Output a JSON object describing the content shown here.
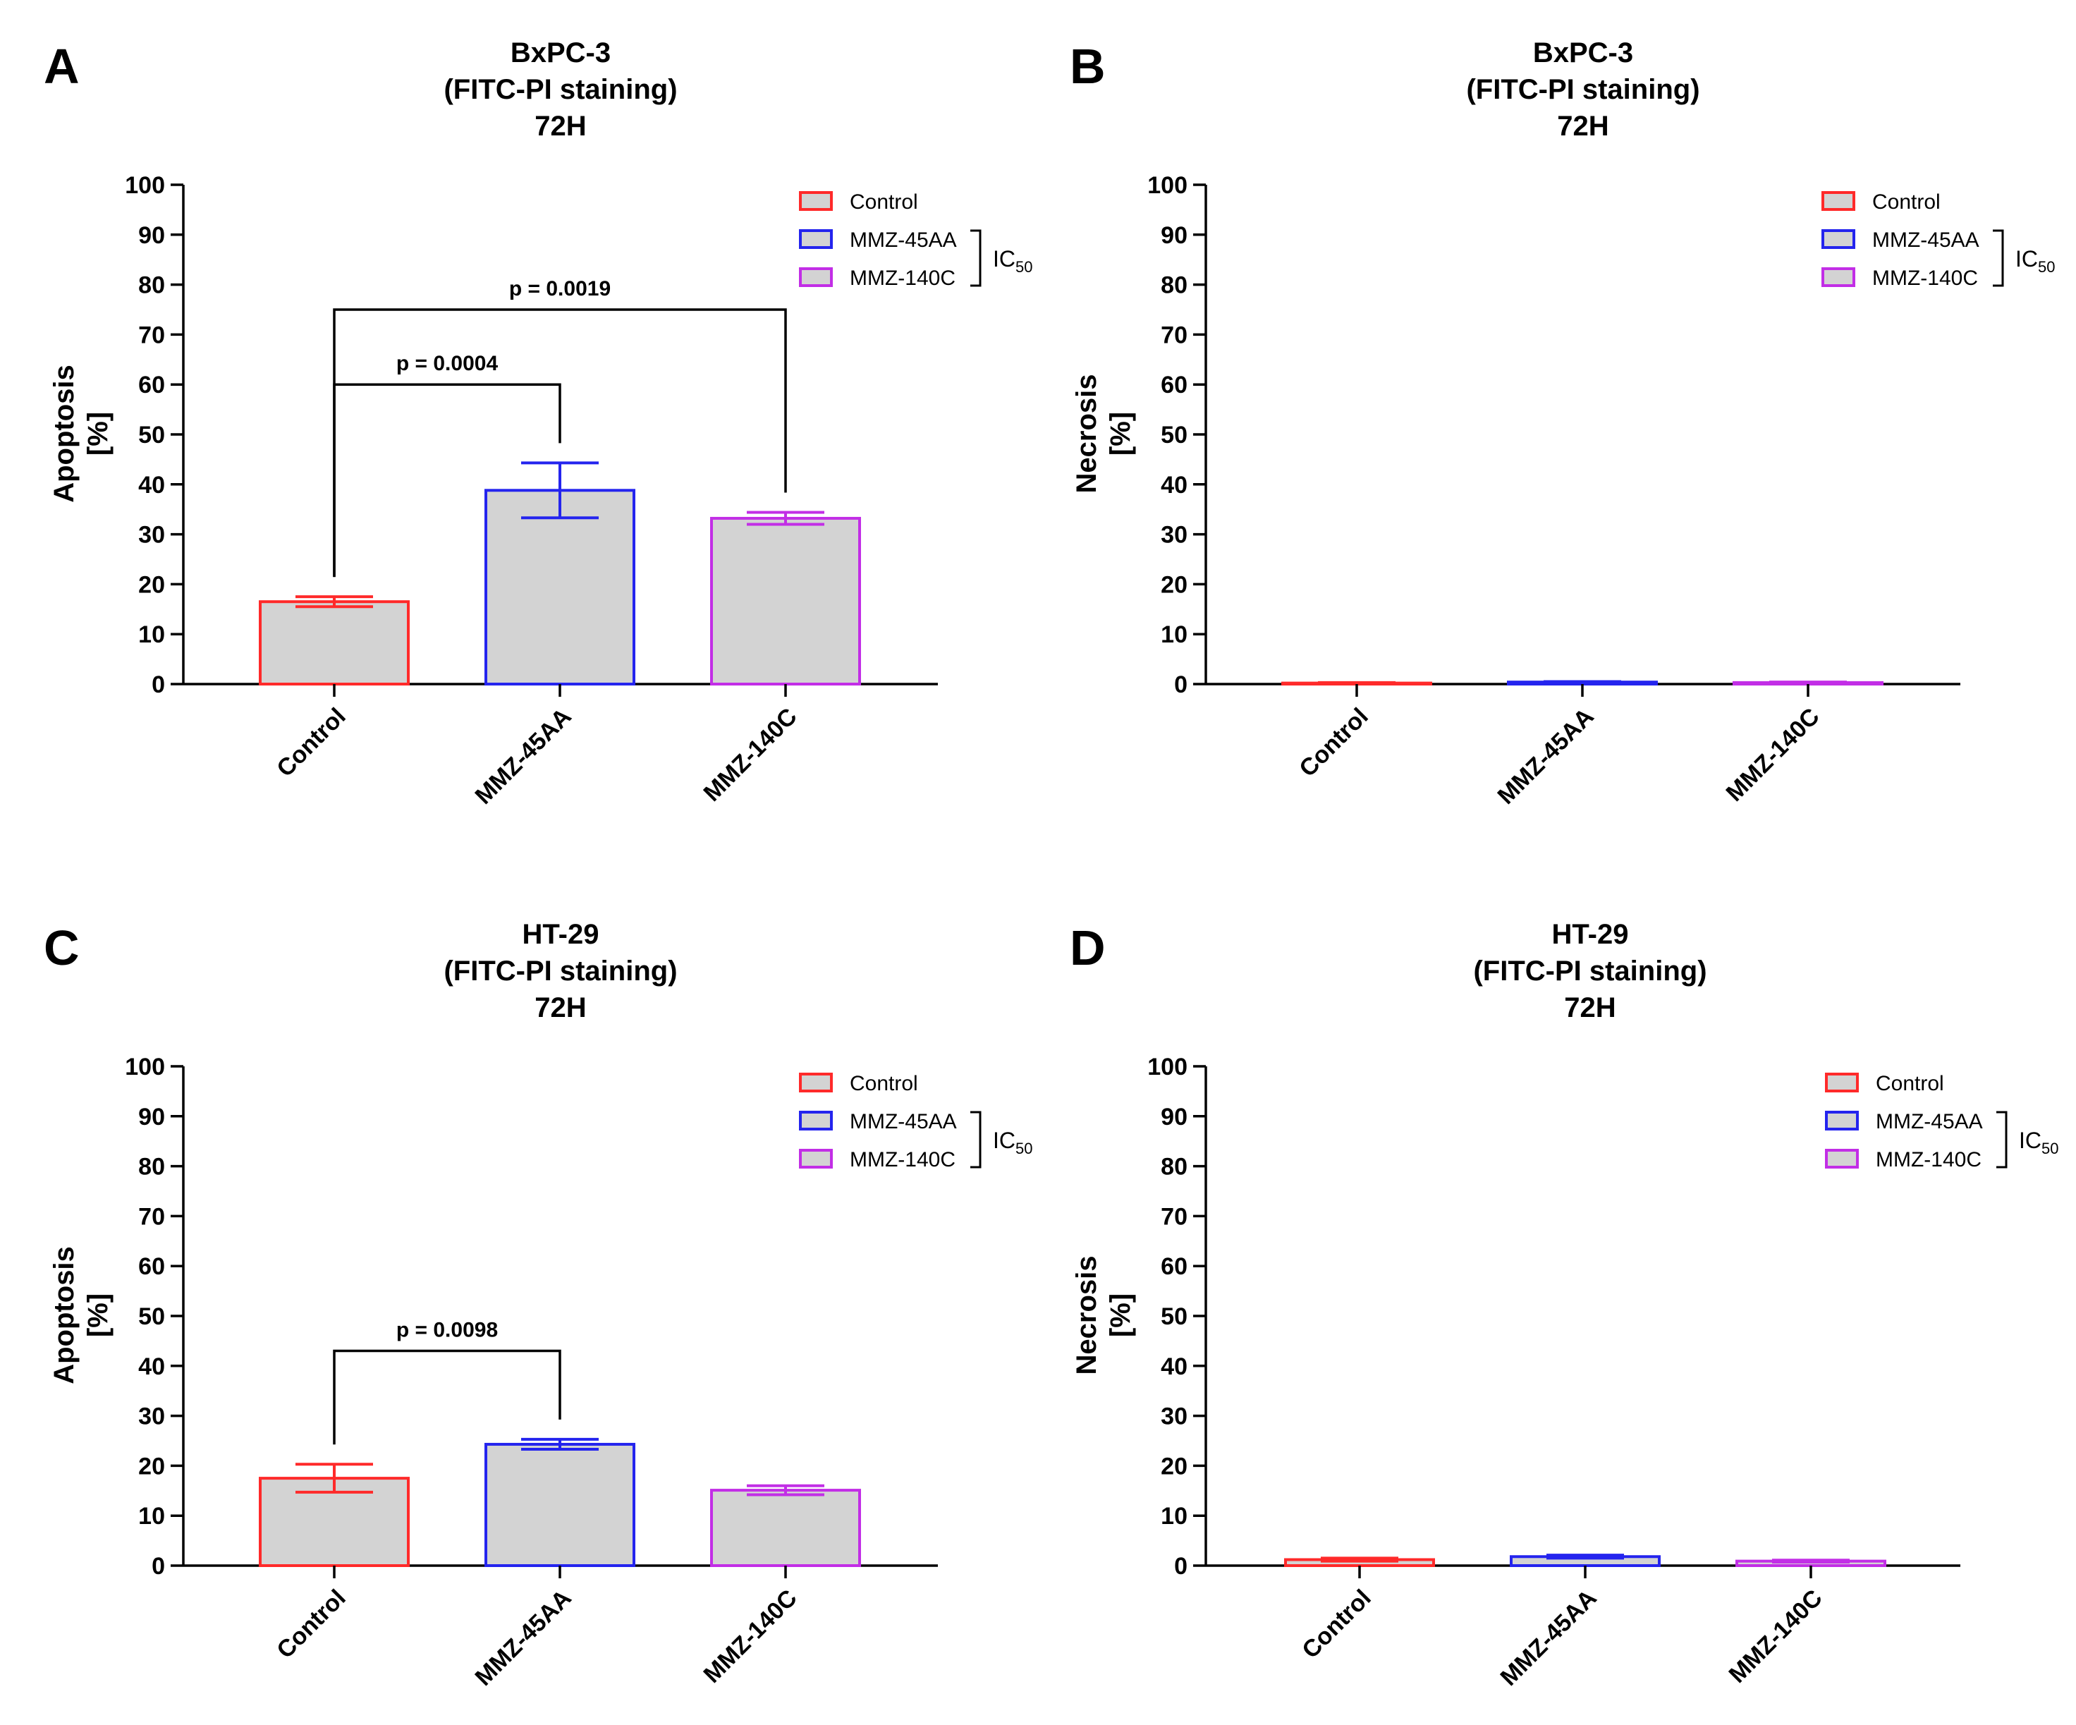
{
  "figure": {
    "bar_fill": "#d3d3d3",
    "series_colors": {
      "Control": "#ff2a2a",
      "MMZ-45AA": "#2424ee",
      "MMZ-140C": "#c22ee6"
    },
    "ic_label": "IC",
    "ic_subscript": "50"
  },
  "chart_data": [
    {
      "panel": "A",
      "type": "bar",
      "title_lines": [
        "BxPC-3",
        "(FITC-PI staining)",
        "72H"
      ],
      "ylabel_lines": [
        "Apoptosis",
        "[%]"
      ],
      "ylim": [
        0,
        100
      ],
      "yticks": [
        0,
        10,
        20,
        30,
        40,
        50,
        60,
        70,
        80,
        90,
        100
      ],
      "categories": [
        "Control",
        "MMZ-45AA",
        "MMZ-140C"
      ],
      "values": [
        16.5,
        38.8,
        33.2
      ],
      "errors": [
        1.0,
        5.5,
        1.2
      ],
      "legend": [
        "Control",
        "MMZ-45AA",
        "MMZ-140C"
      ],
      "significance": [
        {
          "from": 0,
          "to": 1,
          "label": "p = 0.0004",
          "y": 60
        },
        {
          "from": 0,
          "to": 2,
          "label": "p = 0.0019",
          "y": 75
        }
      ]
    },
    {
      "panel": "B",
      "type": "bar",
      "title_lines": [
        "BxPC-3",
        "(FITC-PI staining)",
        "72H"
      ],
      "ylabel_lines": [
        "Necrosis",
        "[%]"
      ],
      "ylim": [
        0,
        100
      ],
      "yticks": [
        0,
        10,
        20,
        30,
        40,
        50,
        60,
        70,
        80,
        90,
        100
      ],
      "categories": [
        "Control",
        "MMZ-45AA",
        "MMZ-140C"
      ],
      "values": [
        0.2,
        0.4,
        0.3
      ],
      "errors": [
        0.1,
        0.1,
        0.1
      ],
      "legend": [
        "Control",
        "MMZ-45AA",
        "MMZ-140C"
      ],
      "significance": []
    },
    {
      "panel": "C",
      "type": "bar",
      "title_lines": [
        "HT-29",
        "(FITC-PI staining)",
        "72H"
      ],
      "ylabel_lines": [
        "Apoptosis",
        "[%]"
      ],
      "ylim": [
        0,
        100
      ],
      "yticks": [
        0,
        10,
        20,
        30,
        40,
        50,
        60,
        70,
        80,
        90,
        100
      ],
      "categories": [
        "Control",
        "MMZ-45AA",
        "MMZ-140C"
      ],
      "values": [
        17.5,
        24.3,
        15.1
      ],
      "errors": [
        2.8,
        1.0,
        0.9
      ],
      "legend": [
        "Control",
        "MMZ-45AA",
        "MMZ-140C"
      ],
      "significance": [
        {
          "from": 0,
          "to": 1,
          "label": "p = 0.0098",
          "y": 43
        }
      ]
    },
    {
      "panel": "D",
      "type": "bar",
      "title_lines": [
        "HT-29",
        "(FITC-PI staining)",
        "72H"
      ],
      "ylabel_lines": [
        "Necrosis",
        "[%]"
      ],
      "ylim": [
        0,
        100
      ],
      "yticks": [
        0,
        10,
        20,
        30,
        40,
        50,
        60,
        70,
        80,
        90,
        100
      ],
      "categories": [
        "Control",
        "MMZ-45AA",
        "MMZ-140C"
      ],
      "values": [
        1.2,
        1.8,
        0.9
      ],
      "errors": [
        0.3,
        0.3,
        0.2
      ],
      "legend": [
        "Control",
        "MMZ-45AA",
        "MMZ-140C"
      ],
      "significance": []
    }
  ]
}
